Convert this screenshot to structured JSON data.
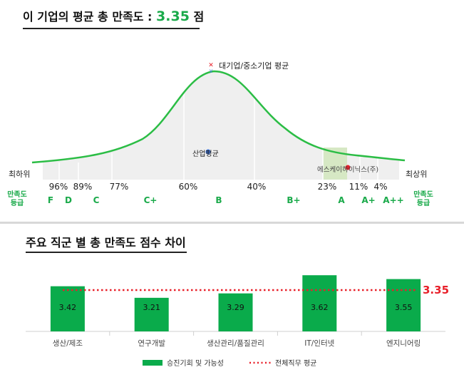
{
  "top": {
    "title_prefix": "이 기업의 평균 총 만족도 :",
    "score": "3.35",
    "score_unit": "점"
  },
  "distribution": {
    "company_avg_label": "대기업/중소기업 평균",
    "industry_avg_label": "산업평균",
    "company_label": "에스케이하이닉스(주)",
    "low_label": "최하위",
    "high_label": "최상위",
    "side_grade_label": [
      "만족도",
      "등급"
    ],
    "percentiles": [
      "96%",
      "89%",
      "77%",
      "60%",
      "40%",
      "23%",
      "11%",
      "4%"
    ],
    "grades": [
      "F",
      "D",
      "C",
      "C+",
      "B",
      "B+",
      "A",
      "A+",
      "A++"
    ]
  },
  "bottom": {
    "title": "주요 직군 별 총 만족도 점수 차이"
  },
  "chart_data": {
    "type": "bar",
    "title": "주요 직군 별 총 만족도 점수 차이",
    "categories": [
      "생산/제조",
      "연구개발",
      "생산관리/품질관리",
      "IT/인터넷",
      "엔지니어링"
    ],
    "series": [
      {
        "name": "승진기회 및 가능성",
        "values": [
          3.42,
          3.21,
          3.29,
          3.62,
          3.55
        ]
      }
    ],
    "reference_line": {
      "name": "전체직무 평균",
      "value": 3.35,
      "label": "3.35"
    },
    "ylim": [
      2.6,
      3.7
    ],
    "xlabel": "",
    "ylabel": "",
    "colors": {
      "bar": "#0aab4b",
      "reference": "#e8202a",
      "curve": "#2bbd45"
    }
  }
}
